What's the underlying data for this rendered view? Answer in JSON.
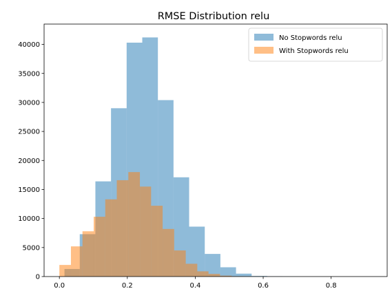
{
  "chart_data": {
    "type": "histogram",
    "title": "RMSE Distribution relu",
    "xlabel": "",
    "ylabel": "",
    "xlim": [
      -0.045,
      0.965
    ],
    "ylim": [
      0,
      43500
    ],
    "x_ticks": [
      0.0,
      0.2,
      0.4,
      0.6,
      0.8
    ],
    "x_tick_labels": [
      "0.0",
      "0.2",
      "0.4",
      "0.6",
      "0.8"
    ],
    "y_ticks": [
      0,
      5000,
      10000,
      15000,
      20000,
      25000,
      30000,
      35000,
      40000
    ],
    "y_tick_labels": [
      "0",
      "5000",
      "10000",
      "15000",
      "20000",
      "25000",
      "30000",
      "35000",
      "40000"
    ],
    "grid": false,
    "legend": {
      "placement": "top-right",
      "entries": [
        "No Stopwords relu",
        "With Stopwords relu"
      ]
    },
    "series": [
      {
        "name": "No Stopwords relu",
        "color": "#1f77b4",
        "alpha": 0.5,
        "bins": [
          [
            0.015,
            0.06,
            1300
          ],
          [
            0.06,
            0.106,
            7300
          ],
          [
            0.106,
            0.152,
            16400
          ],
          [
            0.152,
            0.198,
            29000
          ],
          [
            0.198,
            0.244,
            40300
          ],
          [
            0.244,
            0.29,
            41200
          ],
          [
            0.29,
            0.336,
            30400
          ],
          [
            0.336,
            0.382,
            17100
          ],
          [
            0.382,
            0.428,
            8600
          ],
          [
            0.428,
            0.474,
            3900
          ],
          [
            0.474,
            0.52,
            1600
          ],
          [
            0.52,
            0.566,
            500
          ],
          [
            0.566,
            0.612,
            100
          ],
          [
            0.612,
            0.658,
            40
          ],
          [
            0.658,
            0.704,
            15
          ],
          [
            0.704,
            0.75,
            8
          ],
          [
            0.75,
            0.796,
            4
          ],
          [
            0.796,
            0.842,
            2
          ],
          [
            0.842,
            0.888,
            1
          ],
          [
            0.888,
            0.92,
            1
          ]
        ]
      },
      {
        "name": "With Stopwords relu",
        "color": "#ff7f0e",
        "alpha": 0.5,
        "bins": [
          [
            0.0,
            0.034,
            2000
          ],
          [
            0.034,
            0.068,
            5200
          ],
          [
            0.068,
            0.101,
            7800
          ],
          [
            0.101,
            0.135,
            10300
          ],
          [
            0.135,
            0.169,
            13300
          ],
          [
            0.169,
            0.203,
            16600
          ],
          [
            0.203,
            0.237,
            18000
          ],
          [
            0.237,
            0.27,
            15500
          ],
          [
            0.27,
            0.304,
            12200
          ],
          [
            0.304,
            0.338,
            8200
          ],
          [
            0.338,
            0.372,
            4500
          ],
          [
            0.372,
            0.406,
            2200
          ],
          [
            0.406,
            0.439,
            900
          ],
          [
            0.439,
            0.473,
            450
          ],
          [
            0.473,
            0.507,
            150
          ],
          [
            0.507,
            0.541,
            50
          ],
          [
            0.541,
            0.575,
            20
          ],
          [
            0.575,
            0.608,
            8
          ],
          [
            0.608,
            0.642,
            3
          ],
          [
            0.642,
            0.676,
            1
          ]
        ]
      }
    ]
  }
}
